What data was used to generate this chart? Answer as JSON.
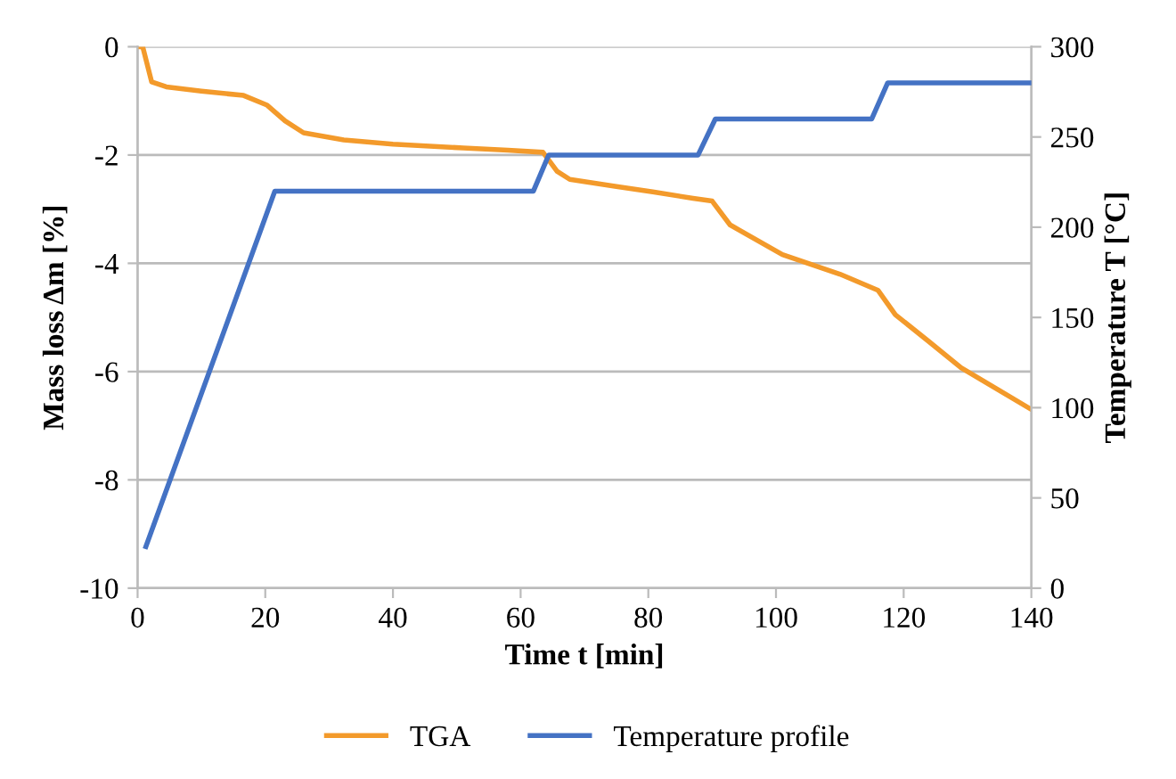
{
  "chart_data": {
    "type": "line",
    "xlabel": "Time t [min]",
    "ylabel": "Mass loss Δm [%]",
    "y2label": "Temperature T [°C]",
    "xlim": [
      0,
      140
    ],
    "xticks": [
      0,
      20,
      40,
      60,
      80,
      100,
      120,
      140
    ],
    "ylim": [
      -10,
      0
    ],
    "yticks": [
      -10,
      -8,
      -6,
      -4,
      -2,
      0
    ],
    "y2lim": [
      0,
      300
    ],
    "y2ticks": [
      0,
      50,
      100,
      150,
      200,
      250,
      300
    ],
    "grid": "y",
    "legend": "bottom",
    "marker": "none",
    "line_style": "solid",
    "series": [
      {
        "name": "TGA",
        "color": "#f39a2b",
        "x": [
          0,
          0.8,
          2.2,
          4.5,
          10,
          16.6,
          20.3,
          23.1,
          26,
          32.3,
          40,
          51,
          58,
          63.5,
          65.7,
          67.7,
          75,
          80.7,
          87,
          90,
          92.8,
          101,
          110,
          116,
          118.7,
          124,
          129,
          135,
          140
        ],
        "values": [
          0,
          0,
          -0.65,
          -0.74,
          -0.82,
          -0.9,
          -1.08,
          -1.37,
          -1.59,
          -1.72,
          -1.8,
          -1.87,
          -1.91,
          -1.95,
          -2.3,
          -2.45,
          -2.58,
          -2.68,
          -2.8,
          -2.85,
          -3.29,
          -3.84,
          -4.2,
          -4.5,
          -4.95,
          -5.45,
          -5.93,
          -6.35,
          -6.7
        ]
      },
      {
        "name": "Temperature profile",
        "color": "#4472c4",
        "axis": "y2",
        "x": [
          1.3,
          21.5,
          62,
          64.4,
          87.8,
          90.5,
          115,
          117.5,
          140
        ],
        "values": [
          23,
          220,
          220,
          240,
          240,
          260,
          260,
          280,
          280
        ]
      }
    ]
  }
}
